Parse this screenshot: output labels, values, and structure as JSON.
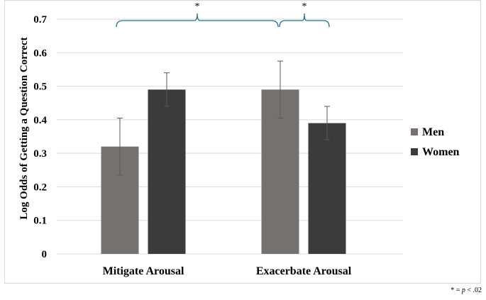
{
  "chart_data": {
    "type": "bar",
    "title": "",
    "xlabel": "",
    "ylabel": "Log Odds of Getting a Question Correct",
    "ylim": [
      0,
      0.7
    ],
    "yticks": [
      0,
      0.1,
      0.2,
      0.3,
      0.4,
      0.5,
      0.6,
      0.7
    ],
    "ytick_labels": [
      "0",
      "0.1",
      "0.2",
      "0.3",
      "0.4",
      "0.5",
      "0.6",
      "0.7"
    ],
    "categories": [
      "Mitigate Arousal",
      "Exacerbate Arousal"
    ],
    "series": [
      {
        "name": "Men",
        "color": "#767171",
        "values": [
          0.32,
          0.49
        ],
        "error_low": [
          0.235,
          0.405
        ],
        "error_high": [
          0.405,
          0.575
        ]
      },
      {
        "name": "Women",
        "color": "#3b3b3b",
        "values": [
          0.49,
          0.39
        ],
        "error_low": [
          0.44,
          0.34
        ],
        "error_high": [
          0.54,
          0.44
        ]
      }
    ],
    "grid": true,
    "legend_position": "right",
    "significance": [
      {
        "label": "*",
        "comparison": "Mitigate Arousal vs Exacerbate Arousal"
      },
      {
        "label": "*",
        "comparison": "Men vs Women within Exacerbate Arousal"
      }
    ],
    "bracket_color": "#1f6f8b",
    "footnote": {
      "prefix": "* = ",
      "p": "p",
      "suffix": " < .02"
    }
  }
}
